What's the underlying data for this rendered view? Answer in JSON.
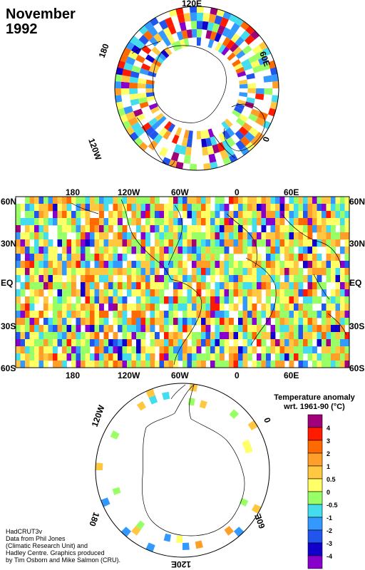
{
  "title": {
    "line1": "November",
    "line2": "1992"
  },
  "north_polar_labels": {
    "top": "120E",
    "right": "60E",
    "left": "180",
    "lower_left": "120W",
    "lower_right": "0"
  },
  "south_polar_labels": {
    "upper_left": "120W",
    "upper_right": "0",
    "lower_left": "180",
    "lower_right": "60E",
    "bottom": "120E"
  },
  "map_lon_labels": [
    "180",
    "120W",
    "60W",
    "0",
    "60E"
  ],
  "map_lat_labels": [
    "60N",
    "30N",
    "EQ",
    "30S",
    "60S"
  ],
  "legend": {
    "title_line1": "Temperature anomaly",
    "title_line2": "wrt. 1961-90  (°C)",
    "labels": [
      "4",
      "3",
      "2",
      "1",
      "0.5",
      "0",
      "-0.5",
      "-1",
      "-2",
      "-3",
      "-4"
    ],
    "colors": [
      "#a0007a",
      "#ff1a00",
      "#ff6a00",
      "#ff9f2a",
      "#ffc840",
      "#ffff66",
      "#99ff66",
      "#44ddee",
      "#3399ff",
      "#2255ee",
      "#1100cc",
      "#8800cc"
    ]
  },
  "credits": {
    "line1": "HadCRUT3v",
    "line2": "Data from Phil Jones",
    "line3": "(Climatic Research Unit) and",
    "line4": "Hadley Centre.  Graphics produced",
    "line5": "by Tim Osborn and Mike Salmon (CRU)."
  }
}
